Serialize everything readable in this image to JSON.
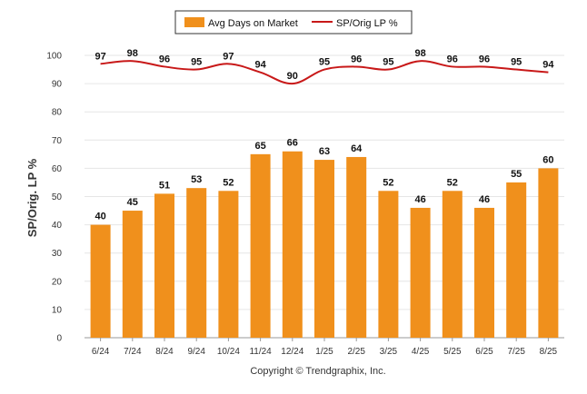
{
  "chart_data": {
    "type": "bar",
    "categories": [
      "6/24",
      "7/24",
      "8/24",
      "9/24",
      "10/24",
      "11/24",
      "12/24",
      "1/25",
      "2/25",
      "3/25",
      "4/25",
      "5/25",
      "6/25",
      "7/25",
      "8/25"
    ],
    "series": [
      {
        "name": "Avg Days on Market",
        "type": "bar",
        "color": "#f0901c",
        "values": [
          40,
          45,
          51,
          53,
          52,
          65,
          66,
          63,
          64,
          52,
          46,
          52,
          46,
          55,
          60
        ]
      },
      {
        "name": "SP/Orig LP %",
        "type": "line",
        "color": "#c81818",
        "values": [
          97,
          98,
          96,
          95,
          97,
          94,
          90,
          95,
          96,
          95,
          98,
          96,
          96,
          95,
          94
        ]
      }
    ],
    "ylabel": "SP/Orig. LP %",
    "ylim": [
      0,
      100
    ],
    "yticks": [
      0,
      10,
      20,
      30,
      40,
      50,
      60,
      70,
      80,
      90,
      100
    ],
    "grid": true,
    "legend_position": "top-center"
  },
  "credit": "Copyright © Trendgraphix, Inc."
}
